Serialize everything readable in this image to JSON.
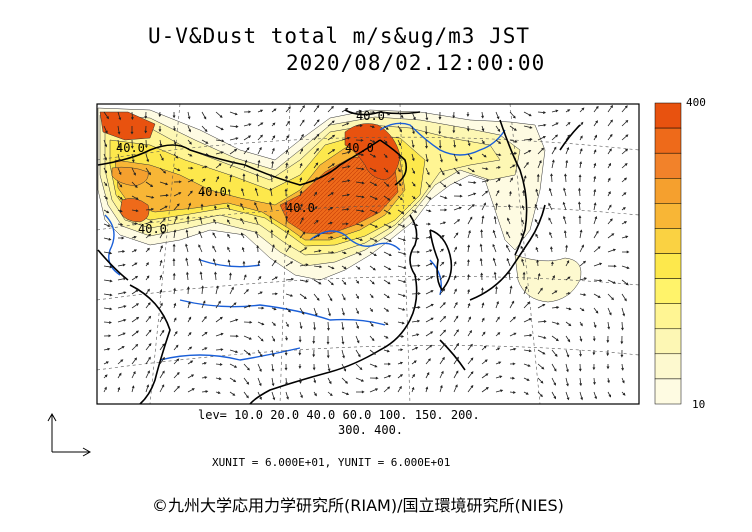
{
  "title_line1": "U-V&Dust total m/s&ug/m3 JST",
  "title_line2": "2020/08/02.12:00:00",
  "map": {
    "contour_labels": [
      "40.0",
      "40.0",
      "40.0",
      "40.0",
      "40.0",
      "40.0"
    ]
  },
  "levels": {
    "line1": "lev= 10.0 20.0 40.0 60.0 100. 150. 200.",
    "line2": "300. 400."
  },
  "colorbar": {
    "max_label": "400",
    "min_label": "10",
    "colors": [
      "#e8520f",
      "#ee6a1a",
      "#f2822a",
      "#f5a02e",
      "#f8b636",
      "#fad242",
      "#fde84c",
      "#fff36a",
      "#fff593",
      "#fdf7b4",
      "#fdf9cf",
      "#fefbe2"
    ]
  },
  "unit_line": "XUNIT = 6.000E+01, YUNIT = 6.000E+01",
  "credit": "©九州大学応用力学研究所(RIAM)/国立環境研究所(NIES)"
}
